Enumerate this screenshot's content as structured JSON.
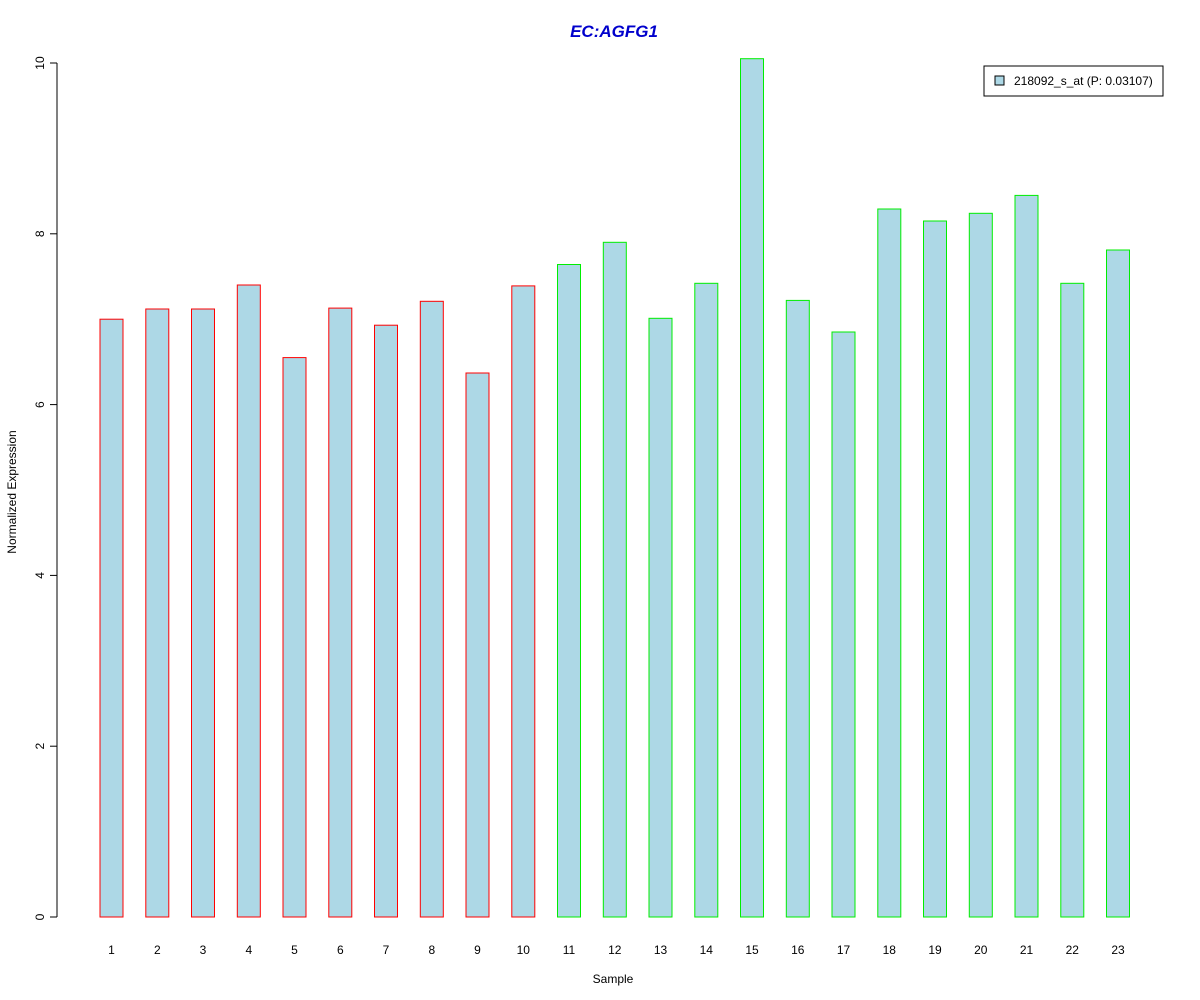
{
  "chart_data": {
    "type": "bar",
    "title": "EC:AGFG1",
    "xlabel": "Sample",
    "ylabel": "Normalized Expression",
    "ylim": [
      0,
      10
    ],
    "yticks": [
      "0",
      "2",
      "4",
      "6",
      "8",
      "10"
    ],
    "categories": [
      "1",
      "2",
      "3",
      "4",
      "5",
      "6",
      "7",
      "8",
      "9",
      "10",
      "11",
      "12",
      "13",
      "14",
      "15",
      "16",
      "17",
      "18",
      "19",
      "20",
      "21",
      "22",
      "23"
    ],
    "series": [
      {
        "name": "218092_s_at (P: 0.03107)",
        "values": [
          7.0,
          7.12,
          7.12,
          7.4,
          6.55,
          7.13,
          6.93,
          7.21,
          6.37,
          7.39,
          7.64,
          7.9,
          7.01,
          7.42,
          10.05,
          7.22,
          6.85,
          8.29,
          8.15,
          8.24,
          8.45,
          7.42,
          7.81
        ]
      }
    ],
    "groups": [
      {
        "samples": [
          "1",
          "2",
          "3",
          "4",
          "5",
          "6",
          "7",
          "8",
          "9",
          "10"
        ],
        "border_color": "#ff0000"
      },
      {
        "samples": [
          "11",
          "12",
          "13",
          "14",
          "15",
          "16",
          "17",
          "18",
          "19",
          "20",
          "21",
          "22",
          "23"
        ],
        "border_color": "#00ee00"
      }
    ],
    "bar_fill": "#add8e6",
    "title_color": "#0000cc",
    "grid": false,
    "legend_position": "top-right"
  }
}
